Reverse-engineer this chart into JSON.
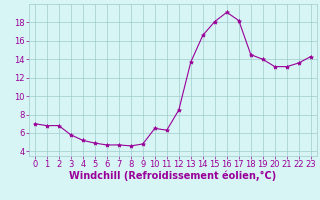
{
  "x": [
    0,
    1,
    2,
    3,
    4,
    5,
    6,
    7,
    8,
    9,
    10,
    11,
    12,
    13,
    14,
    15,
    16,
    17,
    18,
    19,
    20,
    21,
    22,
    23
  ],
  "y": [
    7.0,
    6.8,
    6.8,
    5.8,
    5.2,
    4.9,
    4.7,
    4.7,
    4.6,
    4.8,
    6.5,
    6.3,
    8.5,
    13.7,
    16.6,
    18.1,
    19.1,
    18.2,
    14.5,
    14.0,
    13.2,
    13.2,
    13.6,
    14.3
  ],
  "line_color": "#990099",
  "marker": "*",
  "marker_size": 3,
  "bg_color": "#d8f5f5",
  "grid_color": "#a0cccc",
  "xlabel": "Windchill (Refroidissement éolien,°C)",
  "xlabel_color": "#990099",
  "tick_color": "#990099",
  "xlim": [
    -0.5,
    23.5
  ],
  "ylim": [
    3.5,
    20.0
  ],
  "yticks": [
    4,
    6,
    8,
    10,
    12,
    14,
    16,
    18
  ],
  "xticks": [
    0,
    1,
    2,
    3,
    4,
    5,
    6,
    7,
    8,
    9,
    10,
    11,
    12,
    13,
    14,
    15,
    16,
    17,
    18,
    19,
    20,
    21,
    22,
    23
  ],
  "xlabel_fontsize": 7,
  "tick_fontsize": 6
}
